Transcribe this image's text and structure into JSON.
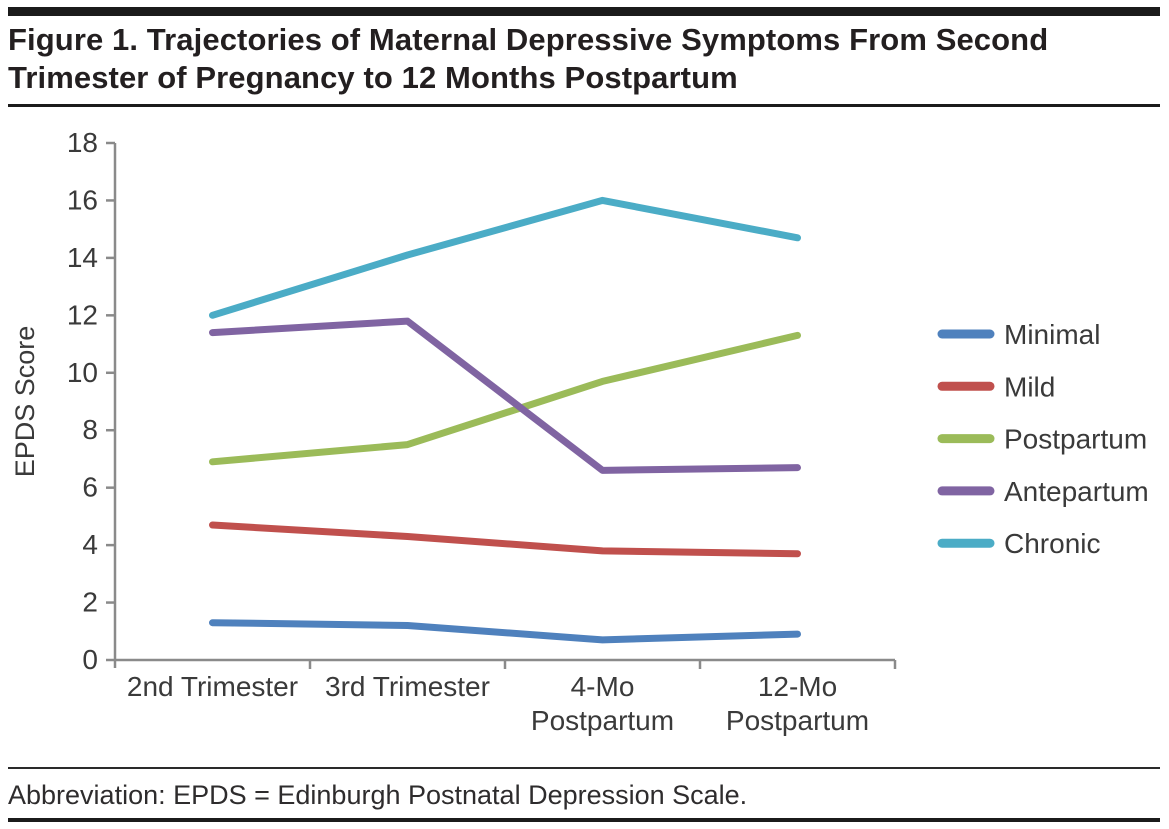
{
  "figure": {
    "title": "Figure 1. Trajectories of Maternal Depressive Symptoms From Second Trimester of Pregnancy to 12 Months Postpartum",
    "footnote": "Abbreviation: EPDS = Edinburgh Postnatal Depression Scale."
  },
  "chart_data": {
    "type": "line",
    "title": "",
    "xlabel": "",
    "ylabel": "EPDS Score",
    "ylim": [
      0,
      18
    ],
    "ytick_step": 2,
    "grid": false,
    "legend_position": "right",
    "categories": [
      "2nd Trimester",
      "3rd Trimester",
      "4-Mo\nPostpartum",
      "12-Mo\nPostpartum"
    ],
    "series": [
      {
        "name": "Minimal",
        "color": "#4F81BD",
        "values": [
          1.3,
          1.2,
          0.7,
          0.9
        ]
      },
      {
        "name": "Mild",
        "color": "#C0504D",
        "values": [
          4.7,
          4.3,
          3.8,
          3.7
        ]
      },
      {
        "name": "Postpartum",
        "color": "#9BBB59",
        "values": [
          6.9,
          7.5,
          9.7,
          11.3
        ]
      },
      {
        "name": "Antepartum",
        "color": "#8064A2",
        "values": [
          11.4,
          11.8,
          6.6,
          6.7
        ]
      },
      {
        "name": "Chronic",
        "color": "#4BACC6",
        "values": [
          12.0,
          14.1,
          16.0,
          14.7
        ]
      }
    ],
    "style": {
      "axis_color": "#8a8a8a",
      "tick_label_color": "#3a3a3a",
      "line_width": 7
    }
  }
}
